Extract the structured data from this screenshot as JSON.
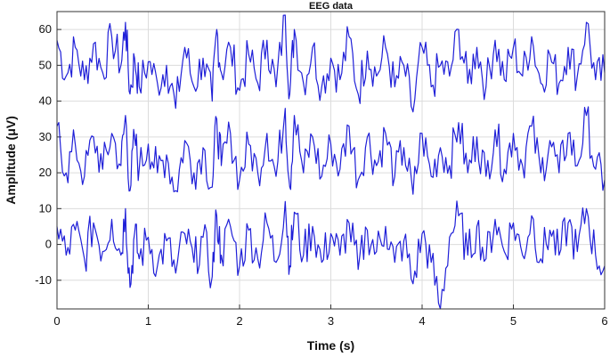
{
  "chart_data": {
    "type": "line",
    "title": "EEG data",
    "xlabel": "Time (s)",
    "ylabel": "Amplitude (μV)",
    "xlim": [
      0,
      6
    ],
    "ylim": [
      -18,
      65
    ],
    "xticks": [
      "0",
      "1",
      "2",
      "3",
      "4",
      "5",
      "6"
    ],
    "yticks": [
      "-10",
      "0",
      "10",
      "20",
      "30",
      "40",
      "50",
      "60"
    ],
    "grid": true,
    "line_color": "#1f1fd8",
    "series": [
      {
        "baseline": 50,
        "x": [
          0,
          0.1,
          0.2,
          0.3,
          0.4,
          0.5,
          0.6,
          0.7,
          0.75,
          0.8,
          0.85,
          0.9,
          1.0,
          1.1,
          1.2,
          1.3,
          1.4,
          1.5,
          1.6,
          1.7,
          1.75,
          1.8,
          1.9,
          2.0,
          2.1,
          2.2,
          2.3,
          2.4,
          2.5,
          2.55,
          2.6,
          2.7,
          2.8,
          2.9,
          3.0,
          3.1,
          3.2,
          3.3,
          3.4,
          3.5,
          3.6,
          3.7,
          3.8,
          3.9,
          4.0,
          4.1,
          4.2,
          4.3,
          4.4,
          4.5,
          4.6,
          4.7,
          4.8,
          4.9,
          5.0,
          5.1,
          5.2,
          5.3,
          5.4,
          5.5,
          5.6,
          5.7,
          5.8,
          5.9,
          6.0
        ],
        "values": [
          57,
          47,
          55,
          46,
          56,
          48,
          58,
          50,
          62,
          42,
          52,
          44,
          51,
          45,
          50,
          38,
          55,
          44,
          52,
          40,
          60,
          48,
          55,
          43,
          53,
          45,
          57,
          44,
          64,
          42,
          60,
          45,
          55,
          44,
          52,
          46,
          58,
          42,
          54,
          47,
          55,
          44,
          50,
          37,
          55,
          44,
          50,
          47,
          60,
          45,
          55,
          44,
          57,
          46,
          55,
          47,
          58,
          45,
          53,
          45,
          55,
          47,
          62,
          46,
          48
        ]
      },
      {
        "baseline": 25,
        "x": [
          0,
          0.1,
          0.2,
          0.3,
          0.4,
          0.5,
          0.6,
          0.7,
          0.75,
          0.8,
          0.85,
          0.9,
          1.0,
          1.1,
          1.2,
          1.3,
          1.4,
          1.5,
          1.6,
          1.7,
          1.75,
          1.8,
          1.9,
          2.0,
          2.1,
          2.2,
          2.3,
          2.4,
          2.5,
          2.55,
          2.6,
          2.7,
          2.8,
          2.9,
          3.0,
          3.1,
          3.2,
          3.3,
          3.4,
          3.5,
          3.6,
          3.7,
          3.8,
          3.9,
          4.0,
          4.1,
          4.2,
          4.3,
          4.4,
          4.5,
          4.6,
          4.7,
          4.8,
          4.9,
          5.0,
          5.1,
          5.2,
          5.3,
          5.4,
          5.5,
          5.6,
          5.7,
          5.8,
          5.9,
          6.0
        ],
        "values": [
          33,
          20,
          28,
          19,
          30,
          21,
          31,
          22,
          36,
          15,
          30,
          21,
          28,
          20,
          25,
          15,
          29,
          20,
          27,
          16,
          35,
          22,
          31,
          18,
          28,
          20,
          31,
          19,
          38,
          16,
          36,
          20,
          30,
          19,
          28,
          21,
          33,
          18,
          30,
          22,
          31,
          19,
          27,
          14,
          31,
          19,
          27,
          22,
          34,
          20,
          30,
          19,
          32,
          21,
          31,
          22,
          33,
          20,
          29,
          20,
          31,
          22,
          36,
          21,
          18
        ]
      },
      {
        "baseline": 0,
        "x": [
          0,
          0.1,
          0.2,
          0.3,
          0.4,
          0.5,
          0.6,
          0.7,
          0.75,
          0.8,
          0.85,
          0.9,
          1.0,
          1.1,
          1.2,
          1.3,
          1.4,
          1.5,
          1.6,
          1.7,
          1.75,
          1.8,
          1.9,
          2.0,
          2.1,
          2.2,
          2.3,
          2.4,
          2.5,
          2.55,
          2.6,
          2.7,
          2.8,
          2.9,
          3.0,
          3.1,
          3.2,
          3.3,
          3.4,
          3.5,
          3.6,
          3.7,
          3.8,
          3.9,
          4.0,
          4.1,
          4.2,
          4.3,
          4.4,
          4.5,
          4.6,
          4.7,
          4.8,
          4.9,
          5.0,
          5.1,
          5.2,
          5.3,
          5.4,
          5.5,
          5.6,
          5.7,
          5.8,
          5.9,
          6.0
        ],
        "values": [
          5,
          -3,
          4,
          -4,
          6,
          -2,
          7,
          -3,
          10,
          -12,
          3,
          -4,
          2,
          -6,
          1,
          -8,
          3,
          -5,
          2,
          -9,
          8,
          -3,
          5,
          -6,
          4,
          -4,
          6,
          -5,
          12,
          -6,
          9,
          -3,
          5,
          -5,
          3,
          -3,
          6,
          -7,
          4,
          -2,
          5,
          -5,
          1,
          -11,
          3,
          -5,
          -18,
          2,
          8,
          -3,
          5,
          -4,
          7,
          -2,
          6,
          -3,
          8,
          -4,
          4,
          -3,
          6,
          -2,
          10,
          -3,
          -6
        ]
      }
    ]
  }
}
